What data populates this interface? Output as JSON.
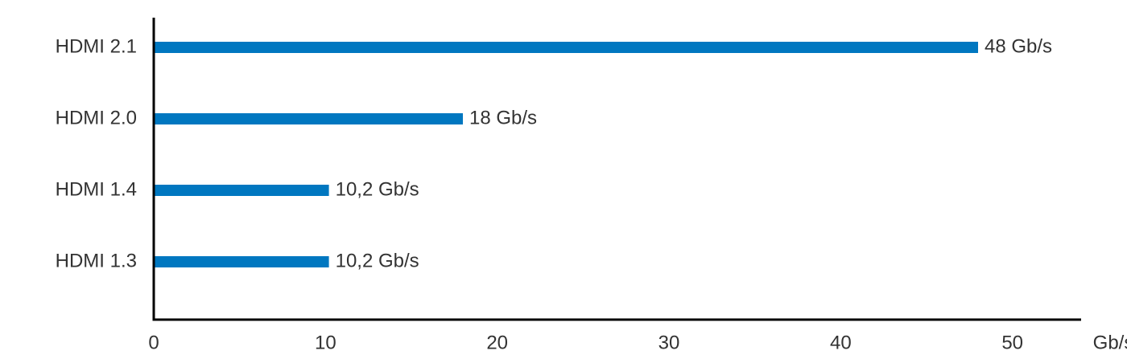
{
  "chart_data": {
    "type": "bar",
    "orientation": "horizontal",
    "categories": [
      "HDMI 2.1",
      "HDMI 2.0",
      "HDMI 1.4",
      "HDMI 1.3"
    ],
    "values": [
      48,
      18,
      10.2,
      10.2
    ],
    "value_labels": [
      "48 Gb/s",
      "18 Gb/s",
      "10,2 Gb/s",
      "10,2 Gb/s"
    ],
    "color": "#0077c0",
    "x_label": "Gb/s",
    "xlim": [
      0,
      54
    ],
    "xticks": [
      0,
      10,
      20,
      30,
      40,
      50
    ],
    "grid": false
  }
}
